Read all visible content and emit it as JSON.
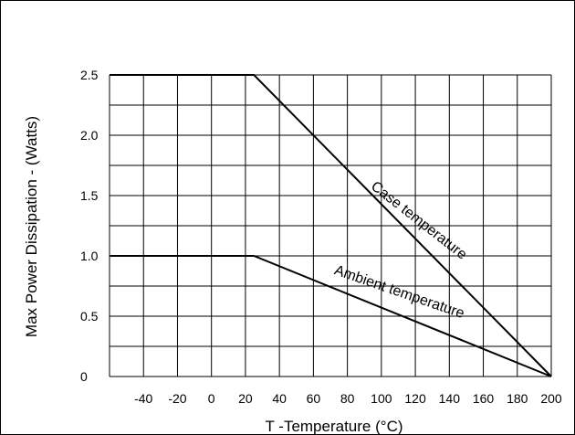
{
  "chart_data": {
    "type": "line",
    "xlabel": "T -Temperature (°C)",
    "ylabel": "Max Power Dissipation - (Watts)",
    "xlim": [
      -60,
      200
    ],
    "ylim": [
      0,
      2.5
    ],
    "x_ticks": [
      -40,
      -20,
      0,
      20,
      40,
      60,
      80,
      100,
      120,
      140,
      160,
      180,
      200
    ],
    "y_ticks": [
      {
        "value": 0,
        "label": "0"
      },
      {
        "value": 0.5,
        "label": "0.5"
      },
      {
        "value": 1.0,
        "label": "1.0"
      },
      {
        "value": 1.5,
        "label": "1.5"
      },
      {
        "value": 2.0,
        "label": "2.0"
      },
      {
        "value": 2.5,
        "label": "2.5"
      }
    ],
    "grid": true,
    "series": [
      {
        "name": "Case temperature",
        "x": [
          -60,
          25,
          200
        ],
        "y": [
          2.5,
          2.5,
          0
        ]
      },
      {
        "name": "Ambient temperature",
        "x": [
          -60,
          25,
          200
        ],
        "y": [
          1.0,
          1.0,
          0
        ]
      }
    ]
  }
}
